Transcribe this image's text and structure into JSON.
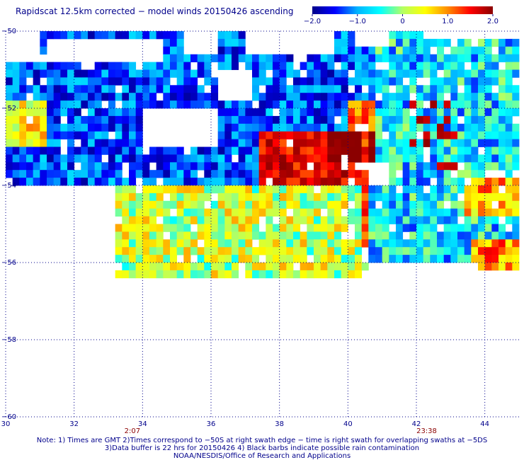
{
  "header": {
    "title": "Rapidscat 12.5km corrected − model winds 20150426 ascending"
  },
  "colorbar": {
    "range": [
      -2.0,
      2.0
    ],
    "tick_labels": [
      "−2.0",
      "−1.0",
      "0",
      "1.0",
      "2.0"
    ],
    "tick_values": [
      -2.0,
      -1.0,
      0,
      1.0,
      2.0
    ],
    "colors": [
      "#00008b",
      "#0000ff",
      "#00b4ff",
      "#00ffff",
      "#b4ff64",
      "#ffff00",
      "#ff8c00",
      "#ff0000",
      "#8b0000"
    ]
  },
  "time_labels": [
    {
      "text": "2:07",
      "lon": 33.7
    },
    {
      "text": "23:38",
      "lon": 42.3
    }
  ],
  "notes": {
    "line1": "Note: 1) Times are GMT 2)Times correspond to −50S at right swath edge − time is right swath for overlapping swaths at −5DS",
    "line2": "3)Data buffer is 22 hrs for 20150426 4) Black barbs indicate possible rain contamination",
    "line3": "NOAA/NESDIS/Office of Research and Applications"
  },
  "chart_data": {
    "type": "heatmap",
    "title": "Rapidscat 12.5km corrected − model winds 20150426 ascending",
    "xlabel": "",
    "ylabel": "",
    "xlim": [
      30,
      45
    ],
    "ylim": [
      -60,
      -50
    ],
    "x_ticks": [
      30,
      32,
      34,
      36,
      38,
      40,
      42,
      44
    ],
    "x_tick_labels": [
      "30",
      "32",
      "34",
      "36",
      "38",
      "40",
      "42",
      "44"
    ],
    "y_ticks": [
      -50,
      -52,
      -54,
      -56,
      -58,
      -60
    ],
    "y_tick_labels": [
      "−50",
      "−52",
      "−54",
      "−56",
      "−58",
      "−60"
    ],
    "grid": true,
    "value_range": [
      -2.0,
      2.0
    ],
    "cell_size_deg": 0.2,
    "regions": [
      {
        "lon": [
          30.0,
          40.6
        ],
        "lat": [
          -54.1,
          -50.0
        ],
        "mean": -1.3,
        "spread": 0.6
      },
      {
        "lon": [
          33.2,
          40.6
        ],
        "lat": [
          -56.5,
          -54.1
        ],
        "mean": 0.2,
        "spread": 0.7
      },
      {
        "lon": [
          40.6,
          45.0
        ],
        "lat": [
          -56.0,
          -50.0
        ],
        "mean": -0.7,
        "spread": 0.7
      },
      {
        "lon": [
          30.0,
          31.2
        ],
        "lat": [
          -53.0,
          -51.8
        ],
        "mean": 0.5,
        "spread": 0.6
      },
      {
        "lon": [
          37.4,
          40.8
        ],
        "lat": [
          -54.0,
          -52.6
        ],
        "mean": 1.6,
        "spread": 0.4
      },
      {
        "lon": [
          39.4,
          40.8
        ],
        "lat": [
          -53.5,
          -52.6
        ],
        "mean": 2.0,
        "spread": 0.1
      },
      {
        "lon": [
          40.1,
          40.8
        ],
        "lat": [
          -52.6,
          -51.8
        ],
        "mean": 1.2,
        "spread": 0.5
      },
      {
        "lon": [
          41.6,
          43.2
        ],
        "lat": [
          -53.6,
          -51.8
        ],
        "mean": 1.8,
        "spread": 0.2,
        "density": 0.25
      },
      {
        "lon": [
          43.7,
          45.0
        ],
        "lat": [
          -56.3,
          -55.5
        ],
        "mean": 1.0,
        "spread": 0.6
      },
      {
        "lon": [
          43.4,
          45.0
        ],
        "lat": [
          -54.8,
          -53.9
        ],
        "mean": 0.8,
        "spread": 0.6
      },
      {
        "lon": [
          40.5,
          40.6
        ],
        "lat": [
          -56.0,
          -51.8
        ],
        "mean": 1.4,
        "spread": 0.4
      }
    ],
    "missing": [
      {
        "lon": [
          34.0,
          36.3
        ],
        "lat": [
          -53.0,
          -52.0
        ]
      },
      {
        "lon": [
          36.2,
          37.2
        ],
        "lat": [
          -51.8,
          -51.0
        ]
      },
      {
        "lon": [
          31.2,
          33.4
        ],
        "lat": [
          -50.9,
          -50.3
        ]
      },
      {
        "lon": [
          33.5,
          34.6
        ],
        "lat": [
          -50.8,
          -50.2
        ]
      },
      {
        "lon": [
          35.2,
          36.3
        ],
        "lat": [
          -50.6,
          -50.0
        ]
      },
      {
        "lon": [
          37.0,
          39.6
        ],
        "lat": [
          -50.6,
          -50.0
        ]
      },
      {
        "lon": [
          42.2,
          45.0
        ],
        "lat": [
          -50.3,
          -50.0
        ]
      },
      {
        "lon": [
          40.2,
          41.2
        ],
        "lat": [
          -50.5,
          -50.0
        ]
      },
      {
        "lon": [
          40.7,
          41.3
        ],
        "lat": [
          -54.0,
          -53.4
        ]
      },
      {
        "lon": [
          30.0,
          31.0
        ],
        "lat": [
          -50.8,
          -50.0
        ]
      }
    ]
  }
}
